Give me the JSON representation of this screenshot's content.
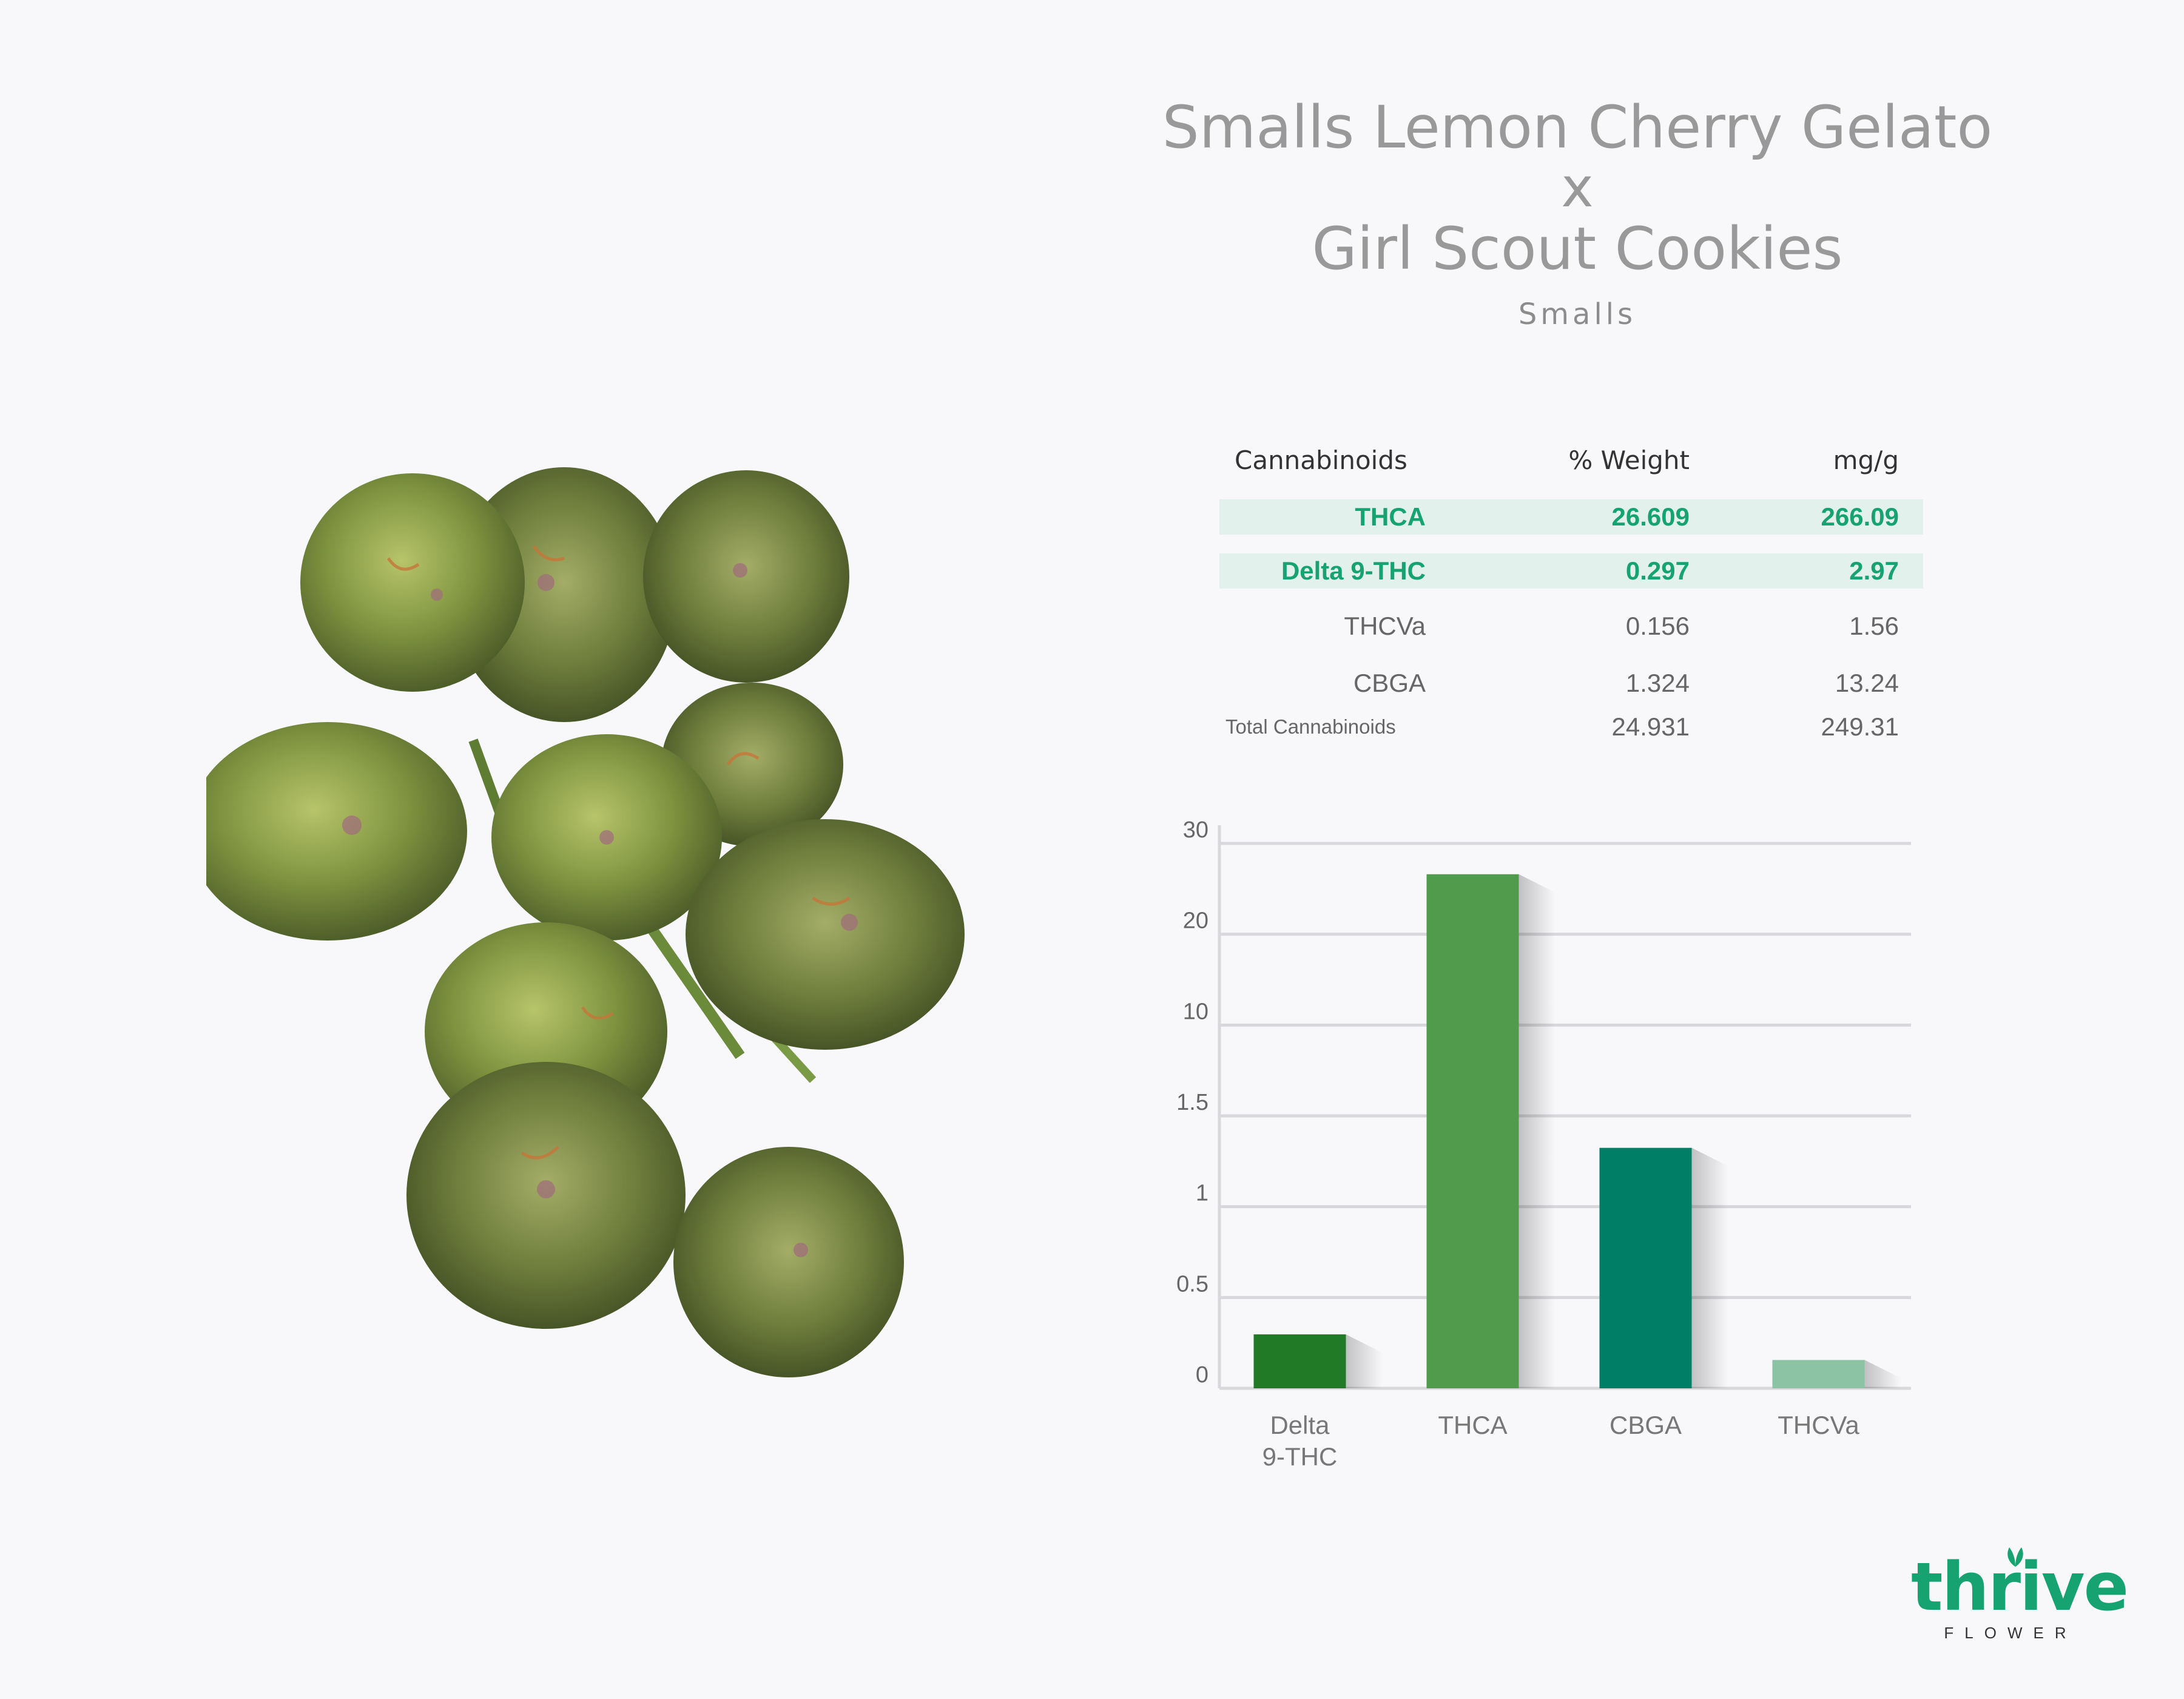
{
  "header": {
    "title_line1": "Smalls Lemon Cherry Gelato",
    "title_x": "x",
    "title_line2": "Girl Scout Cookies",
    "subtitle": "Smalls"
  },
  "table": {
    "headers": [
      "Cannabinoids",
      "% Weight",
      "mg/g"
    ],
    "rows": [
      {
        "name": "THCA",
        "weight": "26.609",
        "mg": "266.09"
      },
      {
        "name": "Delta 9-THC",
        "weight": "0.297",
        "mg": "2.97"
      },
      {
        "name": "THCVa",
        "weight": "0.156",
        "mg": "1.56"
      },
      {
        "name": "CBGA",
        "weight": "1.324",
        "mg": "13.24"
      },
      {
        "name": "Total Cannabinoids",
        "weight": "24.931",
        "mg": "249.31"
      }
    ]
  },
  "chart_data": {
    "type": "bar",
    "categories": [
      "Delta 9-THC",
      "THCA",
      "CBGA",
      "THCVa"
    ],
    "category_lines": [
      [
        "Delta",
        "9-THC"
      ],
      [
        "THCA"
      ],
      [
        "CBGA"
      ],
      [
        "THCVa"
      ]
    ],
    "values": [
      0.297,
      26.609,
      1.324,
      0.156
    ],
    "y_ticks": [
      "0",
      "0.5",
      "1",
      "1.5",
      "10",
      "20",
      "30"
    ],
    "y_tick_values": [
      0,
      0.5,
      1,
      1.5,
      10,
      20,
      30
    ],
    "bar_colors": [
      "#217a25",
      "#509b4c",
      "#007e66",
      "#8bc3a4"
    ],
    "grid": true,
    "title": "",
    "xlabel": "",
    "ylabel": ""
  },
  "colors": {
    "accent": "#16a371",
    "highlight_row": "#e3f1ed",
    "title": "#999999",
    "gridline": "#d8d8dc"
  },
  "logo": {
    "word": "thrive",
    "sub": "FLOWER"
  },
  "icons": {
    "logo_leaf": "leaf-icon",
    "product_image": "cannabis-buds-image"
  }
}
